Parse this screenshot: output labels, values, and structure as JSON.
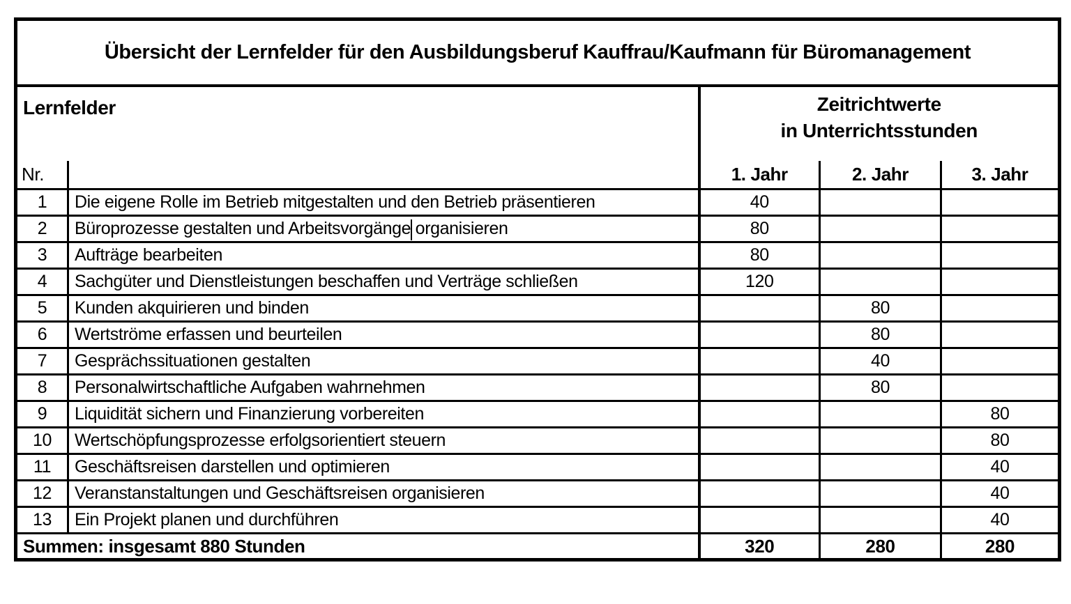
{
  "title": "Übersicht der Lernfelder für den Ausbildungsberuf Kauffrau/Kaufmann für Büromanagement",
  "header": {
    "lernfelder_label": "Lernfelder",
    "nr_label": "Nr.",
    "zeitrichtwerte_line1": "Zeitrichtwerte",
    "zeitrichtwerte_line2": "in Unterrichtsstunden",
    "year_columns": [
      "1. Jahr",
      "2. Jahr",
      "3. Jahr"
    ]
  },
  "rows": [
    {
      "nr": "1",
      "label": "Die eigene Rolle im Betrieb mitgestalten und den Betrieb präsentieren",
      "jahr1": "40",
      "jahr2": "",
      "jahr3": ""
    },
    {
      "nr": "2",
      "label": "Büroprozesse gestalten und Arbeitsvorgänge organisieren",
      "jahr1": "80",
      "jahr2": "",
      "jahr3": "",
      "has_text_cursor": true
    },
    {
      "nr": "3",
      "label": "Aufträge bearbeiten",
      "jahr1": "80",
      "jahr2": "",
      "jahr3": ""
    },
    {
      "nr": "4",
      "label": "Sachgüter und Dienstleistungen beschaffen und Verträge schließen",
      "jahr1": "120",
      "jahr2": "",
      "jahr3": ""
    },
    {
      "nr": "5",
      "label": "Kunden akquirieren und binden",
      "jahr1": "",
      "jahr2": "80",
      "jahr3": ""
    },
    {
      "nr": "6",
      "label": "Wertströme erfassen und beurteilen",
      "jahr1": "",
      "jahr2": "80",
      "jahr3": ""
    },
    {
      "nr": "7",
      "label": "Gesprächssituationen gestalten",
      "jahr1": "",
      "jahr2": "40",
      "jahr3": ""
    },
    {
      "nr": "8",
      "label": "Personalwirtschaftliche Aufgaben wahrnehmen",
      "jahr1": "",
      "jahr2": "80",
      "jahr3": ""
    },
    {
      "nr": "9",
      "label": "Liquidität sichern und Finanzierung vorbereiten",
      "jahr1": "",
      "jahr2": "",
      "jahr3": "80"
    },
    {
      "nr": "10",
      "label": "Wertschöpfungsprozesse erfolgsorientiert steuern",
      "jahr1": "",
      "jahr2": "",
      "jahr3": "80"
    },
    {
      "nr": "11",
      "label": "Geschäftsreisen darstellen und optimieren",
      "jahr1": "",
      "jahr2": "",
      "jahr3": "40"
    },
    {
      "nr": "12",
      "label": "Veranstanstaltungen und Geschäftsreisen organisieren",
      "jahr1": "",
      "jahr2": "",
      "jahr3": "40"
    },
    {
      "nr": "13",
      "label": "Ein Projekt planen und durchführen",
      "jahr1": "",
      "jahr2": "",
      "jahr3": "40"
    }
  ],
  "footer": {
    "label": "Summen: insgesamt 880 Stunden",
    "jahr1": "320",
    "jahr2": "280",
    "jahr3": "280"
  },
  "colors": {
    "border": "#000000",
    "background": "#ffffff",
    "text": "#000000"
  }
}
